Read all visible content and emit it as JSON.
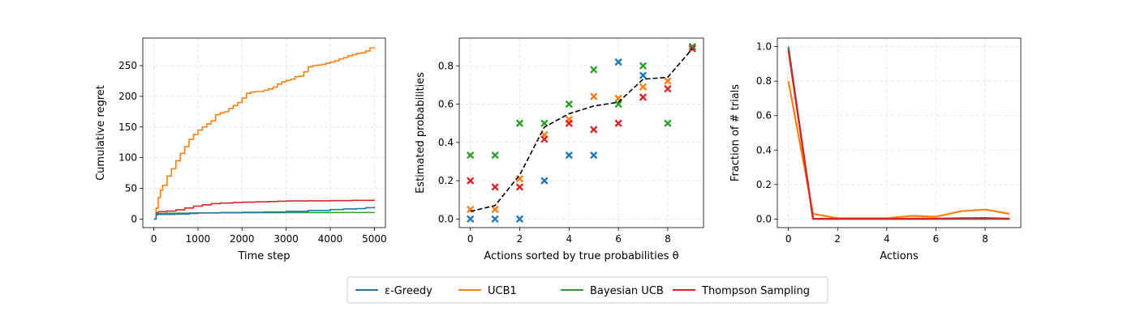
{
  "colors": {
    "epsilon_greedy": "#1f77b4",
    "ucb1": "#ff7f0e",
    "bayesian_ucb": "#2ca02c",
    "thompson": "#d62728",
    "true_prob": "#000000",
    "grid": "#e0e0e0"
  },
  "legend": {
    "placement": "bottom-center",
    "entries": [
      {
        "key": "epsilon_greedy",
        "label": "ε-Greedy"
      },
      {
        "key": "ucb1",
        "label": "UCB1"
      },
      {
        "key": "bayesian_ucb",
        "label": "Bayesian UCB"
      },
      {
        "key": "thompson",
        "label": "Thompson Sampling"
      }
    ]
  },
  "chart_data": [
    {
      "type": "line",
      "xlabel": "Time step",
      "ylabel": "Cumulative regret",
      "xlim": [
        -250,
        5250
      ],
      "ylim": [
        -14,
        295
      ],
      "xticks": [
        0,
        1000,
        2000,
        3000,
        4000,
        5000
      ],
      "yticks": [
        0,
        50,
        100,
        150,
        200,
        250
      ],
      "grid": true,
      "series": [
        {
          "key": "ucb1",
          "x": [
            0,
            50,
            100,
            150,
            200,
            300,
            400,
            500,
            600,
            700,
            800,
            900,
            1000,
            1100,
            1200,
            1300,
            1400,
            1500,
            1600,
            1700,
            1800,
            1900,
            2000,
            2100,
            2200,
            2300,
            2400,
            2500,
            2600,
            2700,
            2800,
            2900,
            3000,
            3100,
            3200,
            3300,
            3400,
            3500,
            3600,
            3700,
            3800,
            3900,
            4000,
            4100,
            4200,
            4300,
            4400,
            4500,
            4600,
            4700,
            4800,
            4900,
            5000
          ],
          "values": [
            0,
            18,
            35,
            47,
            55,
            70,
            82,
            95,
            107,
            118,
            130,
            138,
            145,
            150,
            155,
            160,
            170,
            173,
            175,
            180,
            185,
            190,
            197,
            205,
            207,
            208,
            208,
            210,
            212,
            215,
            220,
            224,
            226,
            228,
            232,
            233,
            240,
            248,
            250,
            251,
            252,
            254,
            256,
            258,
            261,
            263,
            266,
            268,
            270,
            271,
            274,
            279,
            280
          ]
        },
        {
          "key": "thompson",
          "x": [
            0,
            50,
            100,
            300,
            500,
            700,
            900,
            1100,
            1300,
            1500,
            1800,
            2000,
            2300,
            2600,
            2800,
            3000,
            3500,
            4000,
            4500,
            5000
          ],
          "values": [
            0,
            10,
            12,
            13,
            15,
            18,
            21,
            23,
            25,
            26,
            27,
            27.5,
            28,
            28.5,
            29,
            29.5,
            29.7,
            30,
            30.5,
            31
          ]
        },
        {
          "key": "bayesian_ucb",
          "x": [
            0,
            50,
            100,
            300,
            500,
            800,
            1000,
            1500,
            2000,
            2500,
            3000,
            3500,
            4000,
            4500,
            5000
          ],
          "values": [
            0,
            8,
            9,
            9.3,
            9.5,
            9.8,
            10,
            10.2,
            10.3,
            10.4,
            10.5,
            10.5,
            10.6,
            10.6,
            10.7
          ]
        },
        {
          "key": "epsilon_greedy",
          "x": [
            0,
            50,
            100,
            500,
            800,
            1000,
            1500,
            2000,
            2500,
            3000,
            3500,
            4000,
            4300,
            4600,
            4800,
            5000
          ],
          "values": [
            0,
            7,
            7.5,
            8,
            9,
            10,
            10.5,
            11,
            11.5,
            12.5,
            14,
            15.5,
            16.5,
            17,
            18.5,
            20
          ]
        }
      ]
    },
    {
      "type": "scatter",
      "xlabel": "Actions sorted by true probabilities θ",
      "ylabel": "Estimated probabilities",
      "xlim": [
        -0.45,
        9.45
      ],
      "ylim": [
        -0.045,
        0.945
      ],
      "xticks": [
        0,
        2,
        4,
        6,
        8
      ],
      "yticks": [
        0.0,
        0.2,
        0.4,
        0.6,
        0.8
      ],
      "grid": true,
      "true_probabilities": {
        "x": [
          0,
          1,
          2,
          3,
          4,
          5,
          6,
          7,
          8,
          9
        ],
        "values": [
          0.04,
          0.07,
          0.23,
          0.48,
          0.55,
          0.59,
          0.61,
          0.73,
          0.74,
          0.89
        ]
      },
      "series": [
        {
          "key": "epsilon_greedy",
          "x": [
            0,
            1,
            2,
            3,
            4,
            5,
            6,
            7,
            9
          ],
          "values": [
            0.0,
            0.0,
            0.0,
            0.2,
            0.333,
            0.333,
            0.82,
            0.75,
            0.9
          ]
        },
        {
          "key": "ucb1",
          "x": [
            0,
            1,
            2,
            3,
            4,
            5,
            6,
            7,
            8,
            9
          ],
          "values": [
            0.05,
            0.05,
            0.21,
            0.44,
            0.52,
            0.64,
            0.63,
            0.69,
            0.72,
            0.89
          ]
        },
        {
          "key": "bayesian_ucb",
          "x": [
            0,
            1,
            2,
            3,
            4,
            5,
            6,
            7,
            8,
            9
          ],
          "values": [
            0.333,
            0.333,
            0.5,
            0.5,
            0.6,
            0.78,
            0.6,
            0.8,
            0.5,
            0.9
          ]
        },
        {
          "key": "thompson",
          "x": [
            0,
            1,
            2,
            3,
            4,
            5,
            6,
            7,
            8,
            9
          ],
          "values": [
            0.2,
            0.167,
            0.167,
            0.417,
            0.5,
            0.467,
            0.5,
            0.636,
            0.68,
            0.89
          ]
        }
      ]
    },
    {
      "type": "line",
      "xlabel": "Actions",
      "ylabel": "Fraction of # trials",
      "xlim": [
        -0.45,
        9.45
      ],
      "ylim": [
        -0.05,
        1.05
      ],
      "xticks": [
        0,
        2,
        4,
        6,
        8
      ],
      "yticks": [
        0.0,
        0.2,
        0.4,
        0.6,
        0.8,
        1.0
      ],
      "grid": true,
      "series": [
        {
          "key": "bayesian_ucb",
          "x": [
            0,
            1,
            2,
            3,
            4,
            5,
            6,
            7,
            8,
            9
          ],
          "values": [
            1.0,
            0.0,
            0.0,
            0.0,
            0.0,
            0.0,
            0.0,
            0.0,
            0.0,
            0.0
          ]
        },
        {
          "key": "epsilon_greedy",
          "x": [
            0,
            1,
            2,
            3,
            4,
            5,
            6,
            7,
            8,
            9
          ],
          "values": [
            0.99,
            0.002,
            0.002,
            0.002,
            0.002,
            0.002,
            0.002,
            0.003,
            0.003,
            0.002
          ]
        },
        {
          "key": "ucb1",
          "x": [
            0,
            1,
            2,
            3,
            4,
            5,
            6,
            7,
            8,
            9
          ],
          "values": [
            0.8,
            0.03,
            0.005,
            0.005,
            0.005,
            0.018,
            0.013,
            0.045,
            0.055,
            0.03
          ]
        },
        {
          "key": "thompson",
          "x": [
            0,
            1,
            2,
            3,
            4,
            5,
            6,
            7,
            8,
            9
          ],
          "values": [
            0.98,
            0.001,
            0.001,
            0.001,
            0.001,
            0.001,
            0.002,
            0.005,
            0.006,
            0.002
          ]
        }
      ]
    }
  ]
}
